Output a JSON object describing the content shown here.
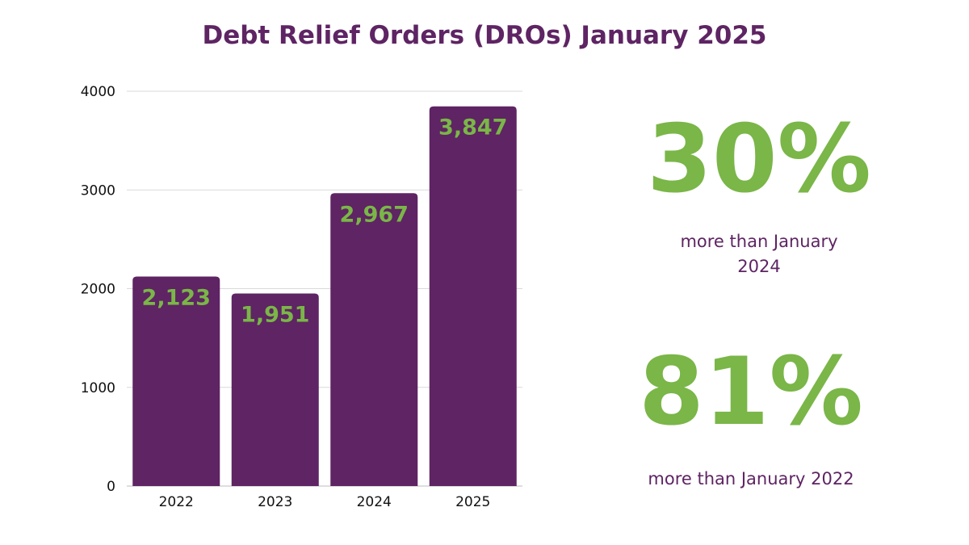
{
  "chart_data": {
    "type": "bar",
    "title": "Debt Relief Orders (DROs) January 2025",
    "categories": [
      "2022",
      "2023",
      "2024",
      "2025"
    ],
    "values": [
      2123,
      1951,
      2967,
      3847
    ],
    "data_labels": [
      "2,123",
      "1,951",
      "2,967",
      "3,847"
    ],
    "yticks": [
      "0",
      "1000",
      "2000",
      "3000",
      "4000"
    ],
    "ylim": [
      0,
      4000
    ],
    "xlabel": "",
    "ylabel": "",
    "grid": true,
    "bar_color": "#5e2463",
    "label_color": "#7ab648"
  },
  "stats": [
    {
      "value": "30%",
      "caption": "more than January 2024"
    },
    {
      "value": "81%",
      "caption": "more than January 2022"
    }
  ],
  "colors": {
    "accent_purple": "#5e2463",
    "accent_green": "#7ab648"
  }
}
